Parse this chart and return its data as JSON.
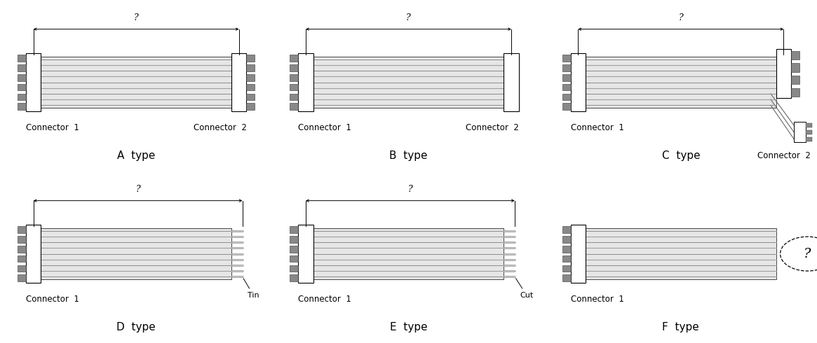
{
  "bg": "#ffffff",
  "lc": "#000000",
  "panels": [
    {
      "label": "A  type",
      "col": 0,
      "row": 0,
      "conn1": "Connector  1",
      "conn2": "Connector  2",
      "type": "A"
    },
    {
      "label": "B  type",
      "col": 1,
      "row": 0,
      "conn1": "Connector  1",
      "conn2": "Connector  2",
      "type": "B"
    },
    {
      "label": "C  type",
      "col": 2,
      "row": 0,
      "conn1": "Connector  1",
      "conn2": "Connector  2",
      "type": "C"
    },
    {
      "label": "D  type",
      "col": 0,
      "row": 1,
      "conn1": "Connector  1",
      "conn2": "Tin",
      "type": "D"
    },
    {
      "label": "E  type",
      "col": 1,
      "row": 1,
      "conn1": "Connector  1",
      "conn2": "Cut",
      "type": "E"
    },
    {
      "label": "F  type",
      "col": 2,
      "row": 1,
      "conn1": "Connector  1",
      "conn2": "",
      "type": "F"
    }
  ],
  "n_wires": 9,
  "wire_colors_light": [
    "#d8d8d8",
    "#c8c8c8",
    "#d8d8d8",
    "#c8c8c8",
    "#d8d8d8",
    "#c8c8c8",
    "#d8d8d8",
    "#c8c8c8",
    "#d8d8d8"
  ],
  "wire_colors_dark": [
    "#909090",
    "#a0a0a0",
    "#909090",
    "#a0a0a0",
    "#909090",
    "#a0a0a0",
    "#909090",
    "#a0a0a0",
    "#909090"
  ],
  "tooth_fill": "#888888",
  "conn_fill": "#ffffff"
}
